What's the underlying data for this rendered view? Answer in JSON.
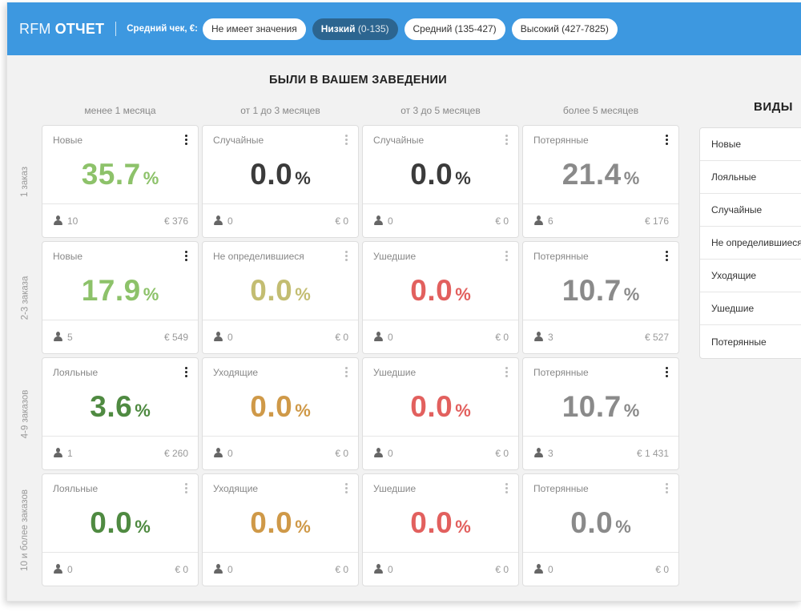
{
  "header": {
    "brand_light": "RFM",
    "brand_bold": "ОТЧЕТ",
    "avg_check_label": "Средний чек, €:",
    "chips": [
      {
        "main": "Не имеет значения",
        "range": "",
        "active": false
      },
      {
        "main": "Низкий",
        "range": "(0-135)",
        "active": true
      },
      {
        "main": "Средний",
        "range": "(135-427)",
        "active": false
      },
      {
        "main": "Высокий",
        "range": "(427-7825)",
        "active": false
      }
    ]
  },
  "section_title": "БЫЛИ В ВАШЕМ ЗАВЕДЕНИИ",
  "columns": [
    "менее 1 месяца",
    "от 1 до 3 месяцев",
    "от 3 до 5 месяцев",
    "более 5 месяцев"
  ],
  "rows": [
    "1 заказ",
    "2-3 заказа",
    "4-9 заказов",
    "10 и более заказов"
  ],
  "colors": {
    "green_light": "#8dc26a",
    "green_dark": "#4f8a41",
    "dark": "#3b3b3b",
    "gray": "#8a8a8a",
    "olive": "#c3bd72",
    "orange": "#cf9948",
    "red": "#e2605e",
    "header_bg": "#3d98e0",
    "active_chip": "#2c6590"
  },
  "grid": [
    [
      {
        "name": "Новые",
        "value": "35.7",
        "pct": "%",
        "count": "10",
        "amount": "€ 376",
        "color": "green-light",
        "menu": "dark"
      },
      {
        "name": "Случайные",
        "value": "0.0",
        "pct": "%",
        "count": "0",
        "amount": "€ 0",
        "color": "dark",
        "menu": "light"
      },
      {
        "name": "Случайные",
        "value": "0.0",
        "pct": "%",
        "count": "0",
        "amount": "€ 0",
        "color": "dark",
        "menu": "light"
      },
      {
        "name": "Потерянные",
        "value": "21.4",
        "pct": "%",
        "count": "6",
        "amount": "€ 176",
        "color": "gray",
        "menu": "dark"
      }
    ],
    [
      {
        "name": "Новые",
        "value": "17.9",
        "pct": "%",
        "count": "5",
        "amount": "€ 549",
        "color": "green-light",
        "menu": "dark"
      },
      {
        "name": "Не определившиеся",
        "value": "0.0",
        "pct": "%",
        "count": "0",
        "amount": "€ 0",
        "color": "olive",
        "menu": "light"
      },
      {
        "name": "Ушедшие",
        "value": "0.0",
        "pct": "%",
        "count": "0",
        "amount": "€ 0",
        "color": "red",
        "menu": "light"
      },
      {
        "name": "Потерянные",
        "value": "10.7",
        "pct": "%",
        "count": "3",
        "amount": "€ 527",
        "color": "gray",
        "menu": "dark"
      }
    ],
    [
      {
        "name": "Лояльные",
        "value": "3.6",
        "pct": "%",
        "count": "1",
        "amount": "€ 260",
        "color": "green-dark",
        "menu": "dark"
      },
      {
        "name": "Уходящие",
        "value": "0.0",
        "pct": "%",
        "count": "0",
        "amount": "€ 0",
        "color": "orange",
        "menu": "light"
      },
      {
        "name": "Ушедшие",
        "value": "0.0",
        "pct": "%",
        "count": "0",
        "amount": "€ 0",
        "color": "red",
        "menu": "light"
      },
      {
        "name": "Потерянные",
        "value": "10.7",
        "pct": "%",
        "count": "3",
        "amount": "€ 1 431",
        "color": "gray",
        "menu": "dark"
      }
    ],
    [
      {
        "name": "Лояльные",
        "value": "0.0",
        "pct": "%",
        "count": "0",
        "amount": "€ 0",
        "color": "green-dark",
        "menu": "light"
      },
      {
        "name": "Уходящие",
        "value": "0.0",
        "pct": "%",
        "count": "0",
        "amount": "€ 0",
        "color": "orange",
        "menu": "light"
      },
      {
        "name": "Ушедшие",
        "value": "0.0",
        "pct": "%",
        "count": "0",
        "amount": "€ 0",
        "color": "red",
        "menu": "light"
      },
      {
        "name": "Потерянные",
        "value": "0.0",
        "pct": "%",
        "count": "0",
        "amount": "€ 0",
        "color": "gray",
        "menu": "light"
      }
    ]
  ],
  "sidebar": {
    "title": "ВИДЫ",
    "items": [
      "Новые",
      "Лояльные",
      "Случайные",
      "Не определившиеся",
      "Уходящие",
      "Ушедшие",
      "Потерянные"
    ]
  }
}
